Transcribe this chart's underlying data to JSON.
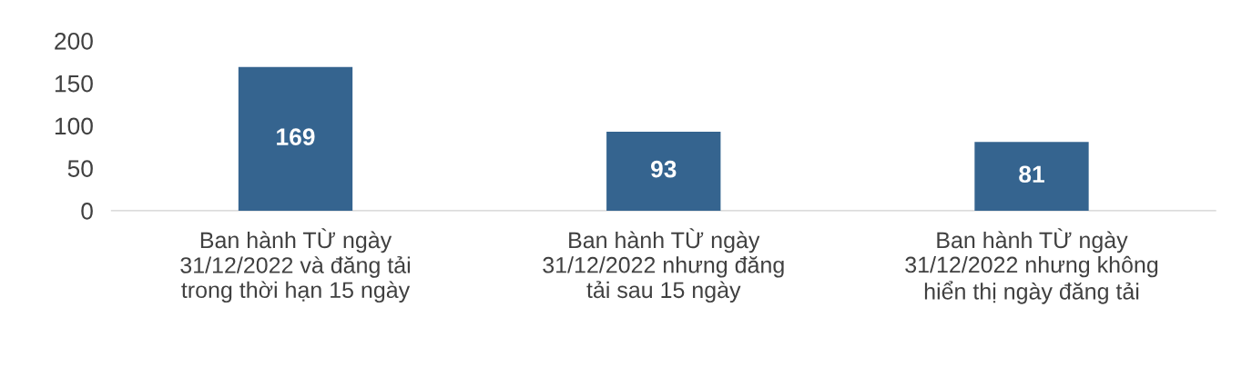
{
  "chart_data": {
    "type": "bar",
    "categories": [
      "Ban hành TỪ ngày 31/12/2022 và đăng tải trong thời hạn 15 ngày",
      "Ban hành TỪ ngày 31/12/2022 nhưng đăng tải sau 15 ngày",
      "Ban hành TỪ ngày 31/12/2022 nhưng không hiển thị ngày đăng tải"
    ],
    "values": [
      169,
      93,
      81
    ],
    "color": "#35648f",
    "ylim": [
      0,
      200
    ],
    "yticks": [
      0,
      50,
      100,
      150,
      200
    ],
    "data_labels": true,
    "grid": false,
    "legend": false
  }
}
